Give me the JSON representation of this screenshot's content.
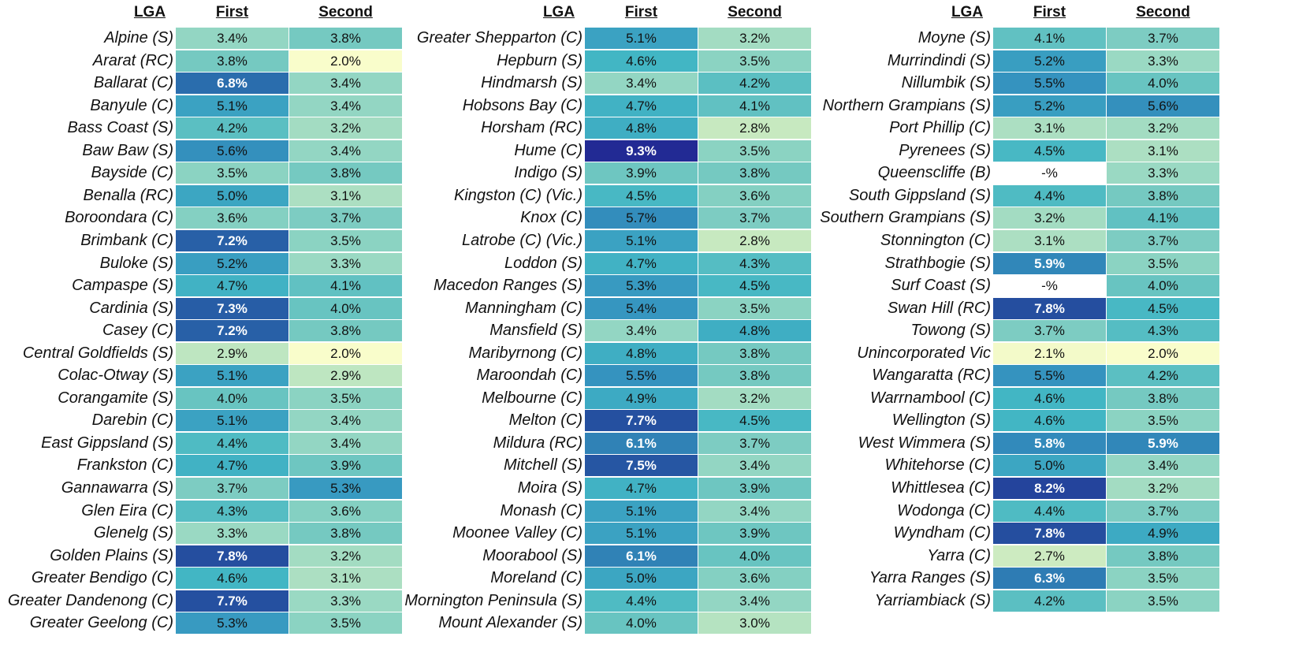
{
  "chart_data": {
    "type": "table",
    "panels": [
      {
        "headers": [
          "LGA",
          "First",
          "Second"
        ],
        "rows": [
          [
            "Alpine (S)",
            "3.4%",
            "3.8%"
          ],
          [
            "Ararat (RC)",
            "3.8%",
            "2.0%"
          ],
          [
            "Ballarat (C)",
            "6.8%",
            "3.4%"
          ],
          [
            "Banyule (C)",
            "5.1%",
            "3.4%"
          ],
          [
            "Bass Coast (S)",
            "4.2%",
            "3.2%"
          ],
          [
            "Baw Baw (S)",
            "5.6%",
            "3.4%"
          ],
          [
            "Bayside (C)",
            "3.5%",
            "3.8%"
          ],
          [
            "Benalla (RC)",
            "5.0%",
            "3.1%"
          ],
          [
            "Boroondara (C)",
            "3.6%",
            "3.7%"
          ],
          [
            "Brimbank (C)",
            "7.2%",
            "3.5%"
          ],
          [
            "Buloke (S)",
            "5.2%",
            "3.3%"
          ],
          [
            "Campaspe (S)",
            "4.7%",
            "4.1%"
          ],
          [
            "Cardinia (S)",
            "7.3%",
            "4.0%"
          ],
          [
            "Casey (C)",
            "7.2%",
            "3.8%"
          ],
          [
            "Central Goldfields (S)",
            "2.9%",
            "2.0%"
          ],
          [
            "Colac-Otway (S)",
            "5.1%",
            "2.9%"
          ],
          [
            "Corangamite (S)",
            "4.0%",
            "3.5%"
          ],
          [
            "Darebin (C)",
            "5.1%",
            "3.4%"
          ],
          [
            "East Gippsland (S)",
            "4.4%",
            "3.4%"
          ],
          [
            "Frankston (C)",
            "4.7%",
            "3.9%"
          ],
          [
            "Gannawarra (S)",
            "3.7%",
            "5.3%"
          ],
          [
            "Glen Eira (C)",
            "4.3%",
            "3.6%"
          ],
          [
            "Glenelg (S)",
            "3.3%",
            "3.8%"
          ],
          [
            "Golden Plains (S)",
            "7.8%",
            "3.2%"
          ],
          [
            "Greater Bendigo (C)",
            "4.6%",
            "3.1%"
          ],
          [
            "Greater Dandenong (C)",
            "7.7%",
            "3.3%"
          ],
          [
            "Greater Geelong (C)",
            "5.3%",
            "3.5%"
          ]
        ]
      },
      {
        "headers": [
          "LGA",
          "First",
          "Second"
        ],
        "rows": [
          [
            "Greater Shepparton (C)",
            "5.1%",
            "3.2%"
          ],
          [
            "Hepburn (S)",
            "4.6%",
            "3.5%"
          ],
          [
            "Hindmarsh (S)",
            "3.4%",
            "4.2%"
          ],
          [
            "Hobsons Bay (C)",
            "4.7%",
            "4.1%"
          ],
          [
            "Horsham (RC)",
            "4.8%",
            "2.8%"
          ],
          [
            "Hume (C)",
            "9.3%",
            "3.5%"
          ],
          [
            "Indigo (S)",
            "3.9%",
            "3.8%"
          ],
          [
            "Kingston (C) (Vic.)",
            "4.5%",
            "3.6%"
          ],
          [
            "Knox (C)",
            "5.7%",
            "3.7%"
          ],
          [
            "Latrobe (C) (Vic.)",
            "5.1%",
            "2.8%"
          ],
          [
            "Loddon (S)",
            "4.7%",
            "4.3%"
          ],
          [
            "Macedon Ranges (S)",
            "5.3%",
            "4.5%"
          ],
          [
            "Manningham (C)",
            "5.4%",
            "3.5%"
          ],
          [
            "Mansfield (S)",
            "3.4%",
            "4.8%"
          ],
          [
            "Maribyrnong (C)",
            "4.8%",
            "3.8%"
          ],
          [
            "Maroondah (C)",
            "5.5%",
            "3.8%"
          ],
          [
            "Melbourne (C)",
            "4.9%",
            "3.2%"
          ],
          [
            "Melton (C)",
            "7.7%",
            "4.5%"
          ],
          [
            "Mildura (RC)",
            "6.1%",
            "3.7%"
          ],
          [
            "Mitchell (S)",
            "7.5%",
            "3.4%"
          ],
          [
            "Moira (S)",
            "4.7%",
            "3.9%"
          ],
          [
            "Monash (C)",
            "5.1%",
            "3.4%"
          ],
          [
            "Moonee Valley (C)",
            "5.1%",
            "3.9%"
          ],
          [
            "Moorabool (S)",
            "6.1%",
            "4.0%"
          ],
          [
            "Moreland (C)",
            "5.0%",
            "3.6%"
          ],
          [
            "Mornington Peninsula (S)",
            "4.4%",
            "3.4%"
          ],
          [
            "Mount Alexander (S)",
            "4.0%",
            "3.0%"
          ]
        ]
      },
      {
        "headers": [
          "LGA",
          "First",
          "Second"
        ],
        "rows": [
          [
            "Moyne (S)",
            "4.1%",
            "3.7%"
          ],
          [
            "Murrindindi (S)",
            "5.2%",
            "3.3%"
          ],
          [
            "Nillumbik (S)",
            "5.5%",
            "4.0%"
          ],
          [
            "Northern Grampians (S)",
            "5.2%",
            "5.6%"
          ],
          [
            "Port Phillip (C)",
            "3.1%",
            "3.2%"
          ],
          [
            "Pyrenees (S)",
            "4.5%",
            "3.1%"
          ],
          [
            "Queenscliffe (B)",
            "-%",
            "3.3%"
          ],
          [
            "South Gippsland (S)",
            "4.4%",
            "3.8%"
          ],
          [
            "Southern Grampians (S)",
            "3.2%",
            "4.1%"
          ],
          [
            "Stonnington (C)",
            "3.1%",
            "3.7%"
          ],
          [
            "Strathbogie (S)",
            "5.9%",
            "3.5%"
          ],
          [
            "Surf Coast (S)",
            "-%",
            "4.0%"
          ],
          [
            "Swan Hill (RC)",
            "7.8%",
            "4.5%"
          ],
          [
            "Towong (S)",
            "3.7%",
            "4.3%"
          ],
          [
            "Unincorporated Vic",
            "2.1%",
            "2.0%"
          ],
          [
            "Wangaratta (RC)",
            "5.5%",
            "4.2%"
          ],
          [
            "Warrnambool (C)",
            "4.6%",
            "3.8%"
          ],
          [
            "Wellington (S)",
            "4.6%",
            "3.5%"
          ],
          [
            "West Wimmera (S)",
            "5.8%",
            "5.9%"
          ],
          [
            "Whitehorse (C)",
            "5.0%",
            "3.4%"
          ],
          [
            "Whittlesea (C)",
            "8.2%",
            "3.2%"
          ],
          [
            "Wodonga (C)",
            "4.4%",
            "3.7%"
          ],
          [
            "Wyndham (C)",
            "7.8%",
            "4.9%"
          ],
          [
            "Yarra (C)",
            "2.7%",
            "3.8%"
          ],
          [
            "Yarra Ranges (S)",
            "6.3%",
            "3.5%"
          ],
          [
            "Yarriambiack (S)",
            "4.2%",
            "3.5%"
          ]
        ]
      }
    ]
  }
}
